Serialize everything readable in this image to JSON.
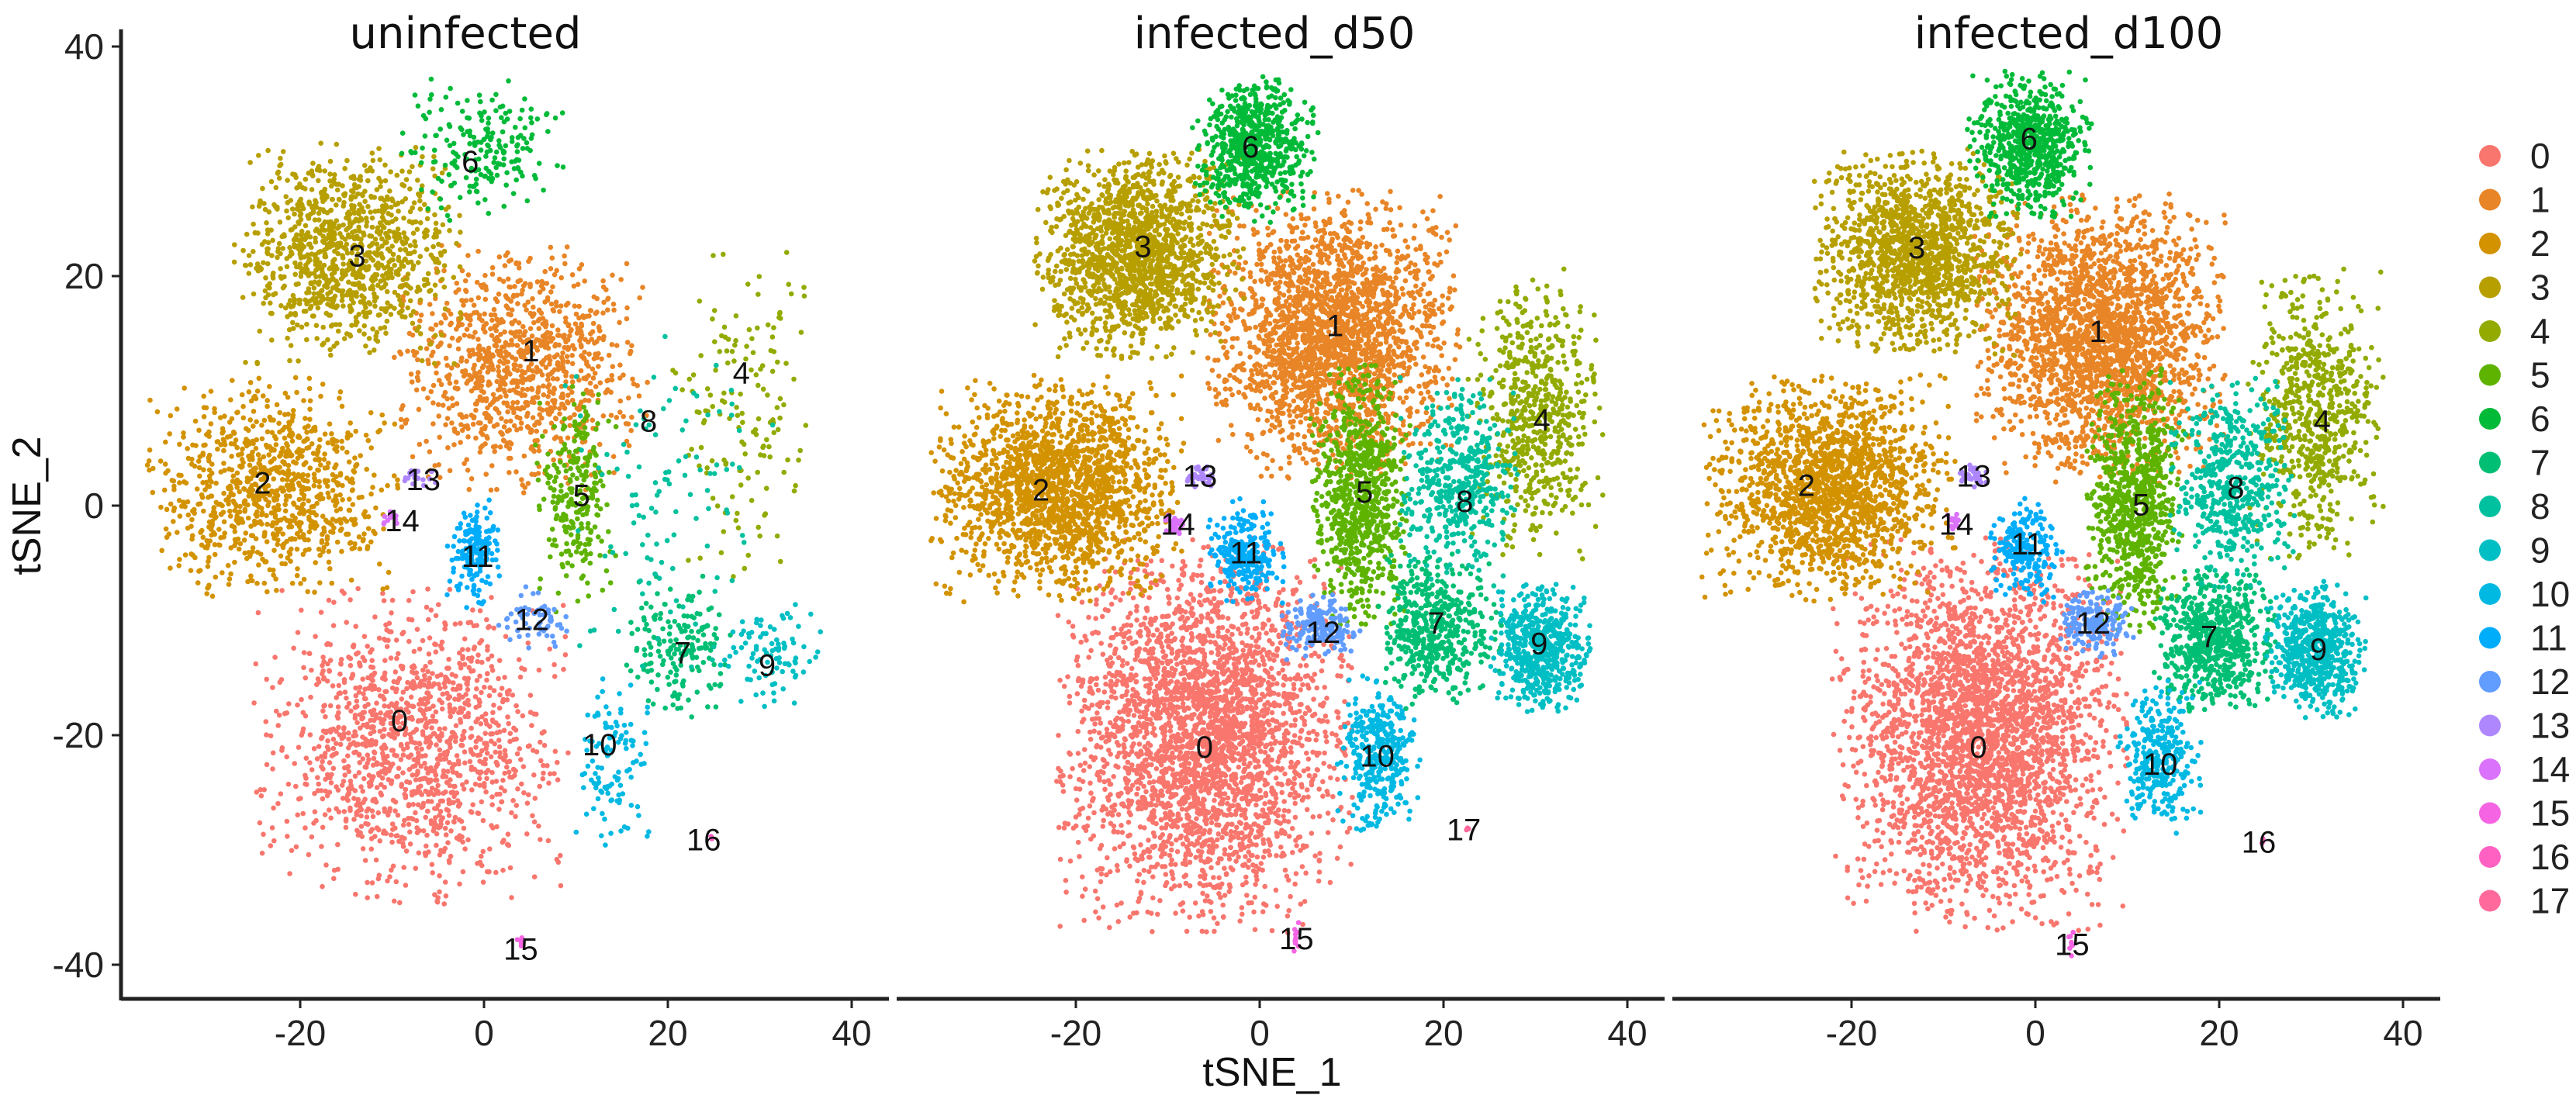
{
  "chart_data": {
    "type": "scatter",
    "xlabel": "tSNE_1",
    "ylabel": "tSNE_2",
    "xlim": [
      -39.5,
      44
    ],
    "ylim": [
      -43,
      41.5
    ],
    "xticks": [
      "-20",
      "0",
      "20",
      "40"
    ],
    "yticks": [
      "-40",
      "-20",
      "0",
      "20",
      "40"
    ],
    "grid": false,
    "legend": {
      "position": "right",
      "entries": [
        "0",
        "1",
        "2",
        "3",
        "4",
        "5",
        "6",
        "7",
        "8",
        "9",
        "10",
        "11",
        "12",
        "13",
        "14",
        "15",
        "16",
        "17"
      ],
      "colors": [
        "#F8766D",
        "#E88526",
        "#D39200",
        "#B79F00",
        "#93AA00",
        "#5EB300",
        "#00BA38",
        "#00BF74",
        "#00C19F",
        "#00BFC4",
        "#00B9E3",
        "#00ADFA",
        "#619CFF",
        "#AE87FF",
        "#DB72FB",
        "#F564E3",
        "#FF61C3",
        "#FF699C"
      ]
    },
    "panels": [
      {
        "title": "uninfected",
        "clusters": [
          {
            "id": "0",
            "x": -9.2,
            "y": -18.7,
            "cx": -8,
            "cy": -21,
            "sx": 7.5,
            "sy": 6,
            "n": 1300
          },
          {
            "id": "1",
            "x": 5.1,
            "y": 13.5,
            "cx": 4,
            "cy": 12,
            "sx": 6,
            "sy": 4.8,
            "n": 1000
          },
          {
            "id": "2",
            "x": -24.1,
            "y": 2.0,
            "cx": -23,
            "cy": 1.5,
            "sx": 6,
            "sy": 4.2,
            "n": 900
          },
          {
            "id": "3",
            "x": -13.8,
            "y": 21.8,
            "cx": -15,
            "cy": 22,
            "sx": 5.5,
            "sy": 4.2,
            "n": 1000
          },
          {
            "id": "4",
            "x": 28.0,
            "y": 11.6,
            "cx": 28,
            "cy": 8,
            "sx": 3.5,
            "sy": 6.5,
            "n": 150
          },
          {
            "id": "5",
            "x": 10.6,
            "y": 0.9,
            "cx": 10,
            "cy": 1,
            "sx": 2,
            "sy": 4.5,
            "n": 250
          },
          {
            "id": "6",
            "x": -1.5,
            "y": 30.0,
            "cx": 0,
            "cy": 31,
            "sx": 4,
            "sy": 2.8,
            "n": 200
          },
          {
            "id": "7",
            "x": 21.6,
            "y": -12.8,
            "cx": 21,
            "cy": -12,
            "sx": 2.8,
            "sy": 2.8,
            "n": 180
          },
          {
            "id": "8",
            "x": 17.9,
            "y": 7.4,
            "cx": 20,
            "cy": 0,
            "sx": 5,
            "sy": 7,
            "n": 110
          },
          {
            "id": "9",
            "x": 30.8,
            "y": -13.9,
            "cx": 31,
            "cy": -13,
            "sx": 2.5,
            "sy": 2,
            "n": 90
          },
          {
            "id": "10",
            "x": 12.6,
            "y": -20.8,
            "cx": 14,
            "cy": -22,
            "sx": 2,
            "sy": 3.5,
            "n": 110
          },
          {
            "id": "11",
            "x": -0.7,
            "y": -4.4,
            "cx": -1,
            "cy": -4,
            "sx": 1.4,
            "sy": 2.2,
            "n": 170
          },
          {
            "id": "12",
            "x": 5.2,
            "y": -9.9,
            "cx": 5.5,
            "cy": -10,
            "sx": 2,
            "sy": 1.3,
            "n": 60
          },
          {
            "id": "13",
            "x": -6.6,
            "y": 2.3,
            "cx": -7,
            "cy": 2.5,
            "sx": 1,
            "sy": 0.5,
            "n": 20
          },
          {
            "id": "14",
            "x": -8.9,
            "y": -1.3,
            "cx": -10,
            "cy": -1.2,
            "sx": 0.6,
            "sy": 0.3,
            "n": 12
          },
          {
            "id": "15",
            "x": 4.0,
            "y": -38.6,
            "cx": 4,
            "cy": -38,
            "sx": 0.2,
            "sy": 0.6,
            "n": 5
          },
          {
            "id": "16",
            "x": 23.9,
            "y": -29.1,
            "cx": 24.5,
            "cy": -29,
            "sx": 0.2,
            "sy": 0.2,
            "n": 2
          }
        ]
      },
      {
        "title": "infected_d50",
        "clusters": [
          {
            "id": "0",
            "x": -6.0,
            "y": -21.0,
            "cx": -6,
            "cy": -20,
            "sx": 7,
            "sy": 7.5,
            "n": 3000
          },
          {
            "id": "1",
            "x": 8.2,
            "y": 15.7,
            "cx": 8,
            "cy": 15,
            "sx": 6,
            "sy": 5.5,
            "n": 2200
          },
          {
            "id": "2",
            "x": -23.8,
            "y": 1.4,
            "cx": -22,
            "cy": 1.5,
            "sx": 6,
            "sy": 4.3,
            "n": 1800
          },
          {
            "id": "3",
            "x": -12.7,
            "y": 22.6,
            "cx": -13,
            "cy": 22,
            "sx": 5,
            "sy": 4,
            "n": 1500
          },
          {
            "id": "4",
            "x": 30.7,
            "y": 7.5,
            "cx": 30,
            "cy": 8,
            "sx": 3.2,
            "sy": 5.5,
            "n": 600
          },
          {
            "id": "5",
            "x": 11.4,
            "y": 1.2,
            "cx": 11,
            "cy": 1,
            "sx": 2.4,
            "sy": 5,
            "n": 800
          },
          {
            "id": "6",
            "x": -1.0,
            "y": 31.3,
            "cx": -0.5,
            "cy": 31,
            "sx": 3,
            "sy": 2.8,
            "n": 650
          },
          {
            "id": "7",
            "x": 19.2,
            "y": -10.2,
            "cx": 19.5,
            "cy": -11,
            "sx": 3,
            "sy": 3,
            "n": 500
          },
          {
            "id": "8",
            "x": 22.3,
            "y": 0.4,
            "cx": 21.5,
            "cy": 2,
            "sx": 3,
            "sy": 4,
            "n": 450
          },
          {
            "id": "9",
            "x": 30.4,
            "y": -12.0,
            "cx": 30.5,
            "cy": -12.5,
            "sx": 2.4,
            "sy": 2.5,
            "n": 550
          },
          {
            "id": "10",
            "x": 12.8,
            "y": -21.8,
            "cx": 13,
            "cy": -21.5,
            "sx": 2,
            "sy": 3,
            "n": 350
          },
          {
            "id": "11",
            "x": -1.5,
            "y": -4.1,
            "cx": -1.5,
            "cy": -4,
            "sx": 1.8,
            "sy": 2,
            "n": 250
          },
          {
            "id": "12",
            "x": 6.9,
            "y": -11.0,
            "cx": 6.5,
            "cy": -10.5,
            "sx": 2,
            "sy": 1.3,
            "n": 180
          },
          {
            "id": "13",
            "x": -6.5,
            "y": 2.6,
            "cx": -6.5,
            "cy": 2.6,
            "sx": 0.8,
            "sy": 0.6,
            "n": 40
          },
          {
            "id": "14",
            "x": -8.9,
            "y": -1.6,
            "cx": -9.2,
            "cy": -1.6,
            "sx": 0.5,
            "sy": 0.5,
            "n": 30
          },
          {
            "id": "15",
            "x": 4.0,
            "y": -37.7,
            "cx": 4,
            "cy": -37.5,
            "sx": 0.2,
            "sy": 0.8,
            "n": 10
          },
          {
            "id": "17",
            "x": 22.2,
            "y": -28.2,
            "cx": 22.6,
            "cy": -28.2,
            "sx": 0.15,
            "sy": 0.15,
            "n": 3
          }
        ]
      },
      {
        "title": "infected_d100",
        "clusters": [
          {
            "id": "0",
            "x": -6.2,
            "y": -21.0,
            "cx": -6,
            "cy": -20,
            "sx": 7,
            "sy": 7.5,
            "n": 3000
          },
          {
            "id": "1",
            "x": 6.8,
            "y": 15.2,
            "cx": 7,
            "cy": 14.5,
            "sx": 6,
            "sy": 5.5,
            "n": 2200
          },
          {
            "id": "2",
            "x": -24.9,
            "y": 1.8,
            "cx": -22.5,
            "cy": 1.5,
            "sx": 6,
            "sy": 4.3,
            "n": 1700
          },
          {
            "id": "3",
            "x": -12.9,
            "y": 22.5,
            "cx": -13,
            "cy": 22,
            "sx": 5,
            "sy": 4,
            "n": 1400
          },
          {
            "id": "4",
            "x": 31.2,
            "y": 7.4,
            "cx": 30.5,
            "cy": 8,
            "sx": 3.2,
            "sy": 5.5,
            "n": 650
          },
          {
            "id": "5",
            "x": 11.5,
            "y": 0.1,
            "cx": 11,
            "cy": 0.5,
            "sx": 2.4,
            "sy": 5,
            "n": 800
          },
          {
            "id": "6",
            "x": -0.7,
            "y": 32.0,
            "cx": -0.5,
            "cy": 31.5,
            "sx": 3,
            "sy": 2.8,
            "n": 650
          },
          {
            "id": "7",
            "x": 18.9,
            "y": -11.4,
            "cx": 19.5,
            "cy": -11.5,
            "sx": 3,
            "sy": 2.8,
            "n": 650
          },
          {
            "id": "8",
            "x": 21.8,
            "y": 1.6,
            "cx": 21.5,
            "cy": 2,
            "sx": 3,
            "sy": 4,
            "n": 500
          },
          {
            "id": "9",
            "x": 30.8,
            "y": -12.5,
            "cx": 30.5,
            "cy": -12.5,
            "sx": 2.4,
            "sy": 2.6,
            "n": 600
          },
          {
            "id": "10",
            "x": 13.6,
            "y": -22.5,
            "cx": 13.5,
            "cy": -22,
            "sx": 2,
            "sy": 3,
            "n": 320
          },
          {
            "id": "11",
            "x": -0.9,
            "y": -3.3,
            "cx": -1.2,
            "cy": -4,
            "sx": 1.8,
            "sy": 2.2,
            "n": 220
          },
          {
            "id": "12",
            "x": 6.3,
            "y": -10.2,
            "cx": 6.3,
            "cy": -10.2,
            "sx": 2,
            "sy": 1.3,
            "n": 180
          },
          {
            "id": "13",
            "x": -6.7,
            "y": 2.6,
            "cx": -6.7,
            "cy": 2.6,
            "sx": 0.7,
            "sy": 0.5,
            "n": 30
          },
          {
            "id": "14",
            "x": -8.6,
            "y": -1.6,
            "cx": -8.8,
            "cy": -1.6,
            "sx": 0.4,
            "sy": 0.4,
            "n": 15
          },
          {
            "id": "15",
            "x": 4.0,
            "y": -38.2,
            "cx": 4,
            "cy": -38,
            "sx": 0.2,
            "sy": 0.6,
            "n": 8
          },
          {
            "id": "16",
            "x": 24.3,
            "y": -29.3,
            "cx": 24.7,
            "cy": -29.3,
            "sx": 0.15,
            "sy": 0.15,
            "n": 3
          }
        ]
      }
    ]
  }
}
